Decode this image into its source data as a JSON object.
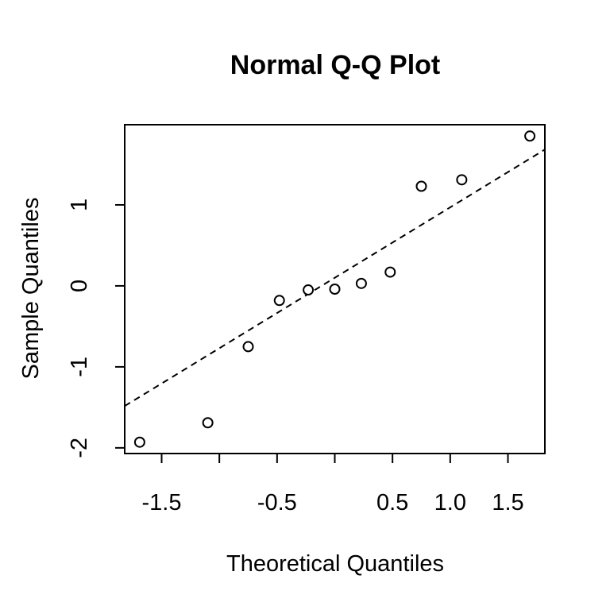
{
  "chart_data": {
    "type": "scatter",
    "title": "Normal Q-Q Plot",
    "xlabel": "Theoretical Quantiles",
    "ylabel": "Sample Quantiles",
    "xlim": [
      -1.82,
      1.82
    ],
    "ylim": [
      -2.07,
      1.99
    ],
    "x_ticks": [
      -1.5,
      -1.0,
      -0.5,
      0.0,
      0.5,
      1.0,
      1.5
    ],
    "x_tick_labels": [
      "-1.5",
      "",
      "-0.5",
      "",
      "0.5",
      "1.0",
      "1.5"
    ],
    "y_ticks": [
      -2,
      -1,
      0,
      1
    ],
    "y_tick_labels": [
      "-2",
      "-1",
      "0",
      "1"
    ],
    "grid": false,
    "reference_line": {
      "style": "dashed",
      "intercept": 0.1,
      "slope": 0.87
    },
    "points": [
      {
        "x": -1.69,
        "y": -1.93
      },
      {
        "x": -1.1,
        "y": -1.69
      },
      {
        "x": -0.75,
        "y": -0.75
      },
      {
        "x": -0.48,
        "y": -0.18
      },
      {
        "x": -0.23,
        "y": -0.05
      },
      {
        "x": 0.0,
        "y": -0.04
      },
      {
        "x": 0.23,
        "y": 0.03
      },
      {
        "x": 0.48,
        "y": 0.17
      },
      {
        "x": 0.75,
        "y": 1.23
      },
      {
        "x": 1.1,
        "y": 1.31
      },
      {
        "x": 1.69,
        "y": 1.85
      }
    ]
  }
}
